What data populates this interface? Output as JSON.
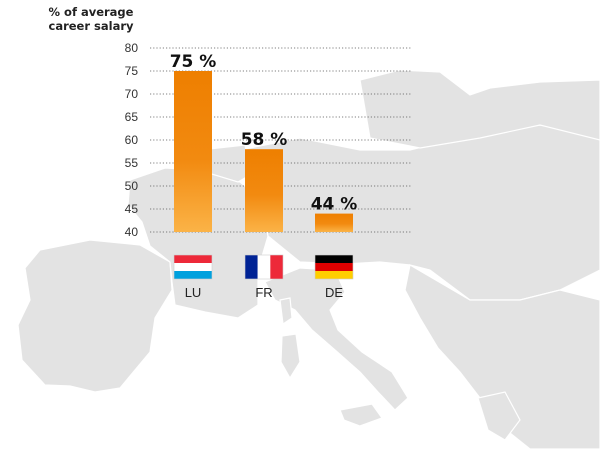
{
  "chart_data": {
    "type": "bar",
    "title": "",
    "ylabel_lines": [
      "% of average",
      "career salary"
    ],
    "xlabel": "",
    "categories": [
      "LU",
      "FR",
      "DE"
    ],
    "values": [
      75,
      58,
      44
    ],
    "value_labels": [
      "75 %",
      "58 %",
      "44 %"
    ],
    "ylim": [
      40,
      80
    ],
    "yticks": [
      80,
      75,
      70,
      65,
      60,
      55,
      50,
      45,
      40
    ],
    "grid": true,
    "flags": [
      "luxembourg-flag",
      "france-flag",
      "germany-flag"
    ],
    "colors": {
      "bar_top": "#ee7f00",
      "bar_bottom": "#fbb347",
      "grid": "#555555",
      "map_land": "#e3e3e3",
      "map_border": "#ffffff",
      "lu_red": "#ed2939",
      "lu_blue": "#00a1de",
      "fr_blue": "#002395",
      "fr_red": "#ed2939",
      "de_black": "#000000",
      "de_red": "#dd0000",
      "de_gold": "#ffce00"
    }
  }
}
